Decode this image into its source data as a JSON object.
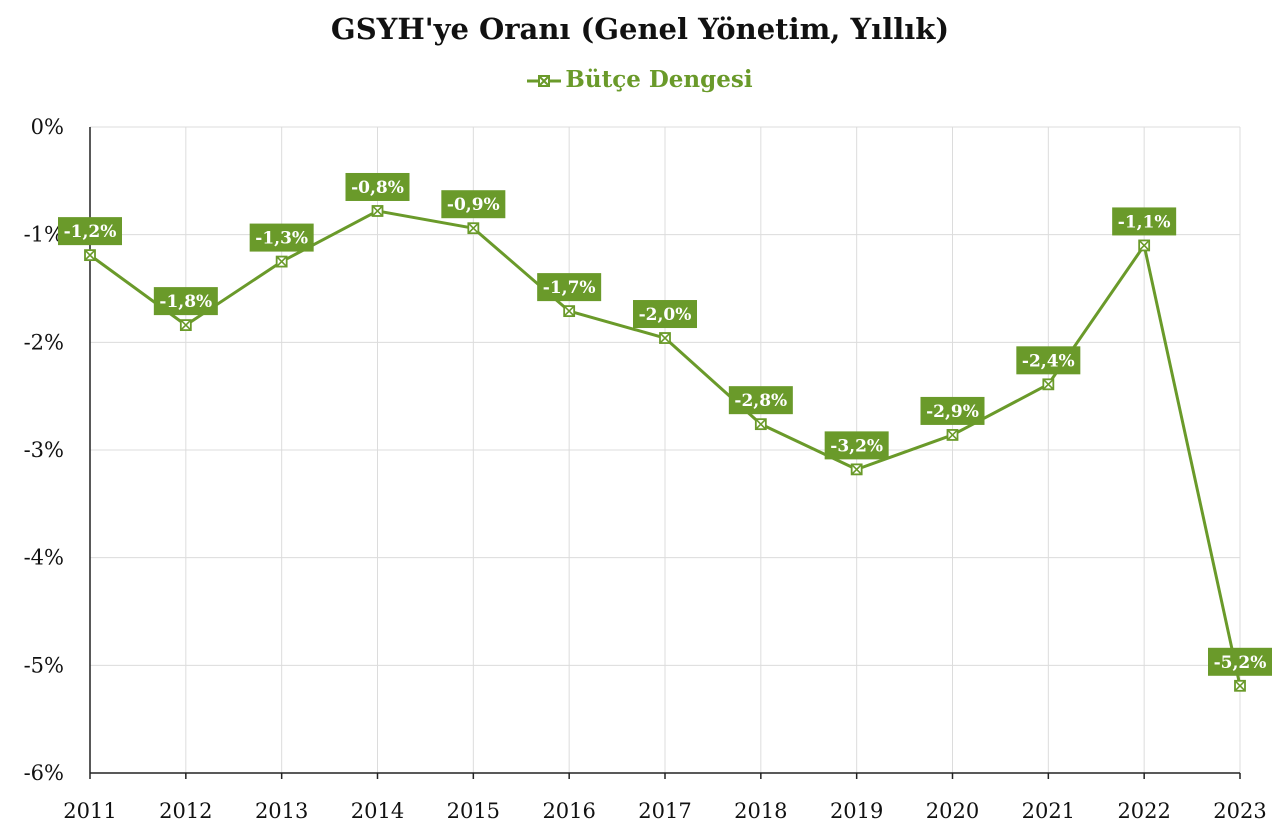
{
  "chart_data": {
    "type": "line",
    "title": "GSYH'ye Oranı (Genel Yönetim, Yıllık)",
    "legend_position": "top-center",
    "grid": true,
    "x": [
      "2011",
      "2012",
      "2013",
      "2014",
      "2015",
      "2016",
      "2017",
      "2018",
      "2019",
      "2020",
      "2021",
      "2022",
      "2023"
    ],
    "ylim": [
      -6,
      0
    ],
    "yticks": [
      0,
      -1,
      -2,
      -3,
      -4,
      -5,
      -6
    ],
    "ytick_labels": [
      "0%",
      "-1%",
      "-2%",
      "-3%",
      "-4%",
      "-5%",
      "-6%"
    ],
    "series": [
      {
        "name": "Bütçe Dengesi",
        "color": "#6a9a2a",
        "marker": "x-square",
        "values": [
          -1.19,
          -1.84,
          -1.25,
          -0.78,
          -0.94,
          -1.71,
          -1.96,
          -2.76,
          -3.18,
          -2.86,
          -2.39,
          -1.1,
          -5.19
        ],
        "data_labels": [
          "-1,2%",
          "-1,8%",
          "-1,3%",
          "-0,8%",
          "-0,9%",
          "-1,7%",
          "-2,0%",
          "-2,8%",
          "-3,2%",
          "-2,9%",
          "-2,4%",
          "-1,1%",
          "-5,2%"
        ]
      }
    ]
  }
}
